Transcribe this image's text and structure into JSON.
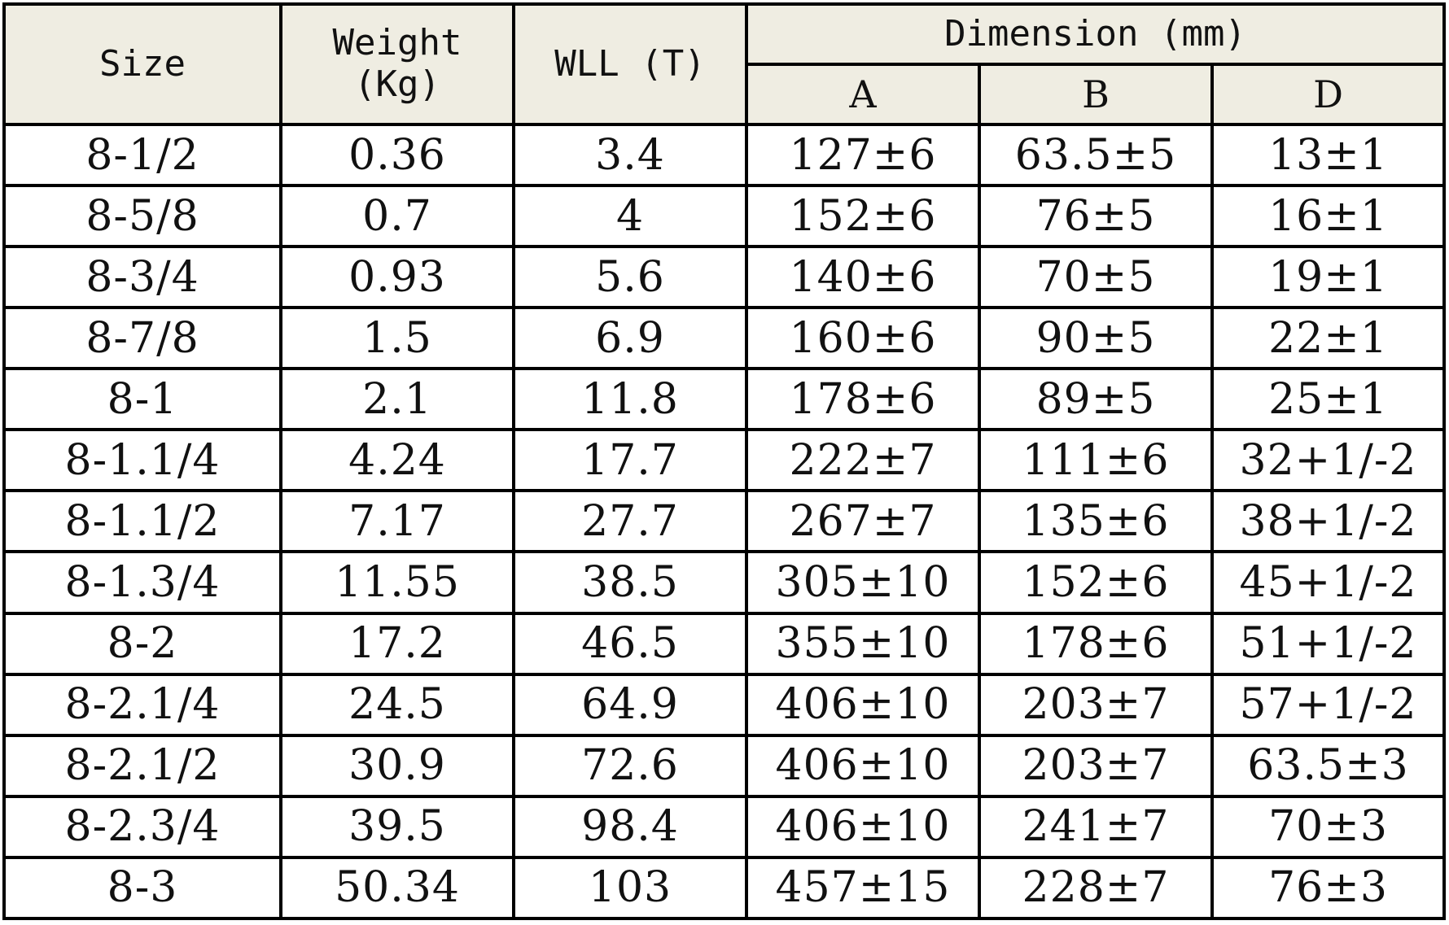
{
  "header": {
    "size": "Size",
    "weight_line1": "Weight",
    "weight_line2": "(Kg)",
    "wll": "WLL (T)",
    "dimension": "Dimension (mm)",
    "a": "A",
    "b": "B",
    "d": "D"
  },
  "rows": [
    {
      "size": "8-1/2",
      "weight": "0.36",
      "wll": "3.4",
      "a": "127±6",
      "b": "63.5±5",
      "d": "13±1"
    },
    {
      "size": "8-5/8",
      "weight": "0.7",
      "wll": "4",
      "a": "152±6",
      "b": "76±5",
      "d": "16±1"
    },
    {
      "size": "8-3/4",
      "weight": "0.93",
      "wll": "5.6",
      "a": "140±6",
      "b": "70±5",
      "d": "19±1"
    },
    {
      "size": "8-7/8",
      "weight": "1.5",
      "wll": "6.9",
      "a": "160±6",
      "b": "90±5",
      "d": "22±1"
    },
    {
      "size": "8-1",
      "weight": "2.1",
      "wll": "11.8",
      "a": "178±6",
      "b": "89±5",
      "d": "25±1"
    },
    {
      "size": "8-1.1/4",
      "weight": "4.24",
      "wll": "17.7",
      "a": "222±7",
      "b": "111±6",
      "d": "32+1/-2"
    },
    {
      "size": "8-1.1/2",
      "weight": "7.17",
      "wll": "27.7",
      "a": "267±7",
      "b": "135±6",
      "d": "38+1/-2"
    },
    {
      "size": "8-1.3/4",
      "weight": "11.55",
      "wll": "38.5",
      "a": "305±10",
      "b": "152±6",
      "d": "45+1/-2"
    },
    {
      "size": "8-2",
      "weight": "17.2",
      "wll": "46.5",
      "a": "355±10",
      "b": "178±6",
      "d": "51+1/-2"
    },
    {
      "size": "8-2.1/4",
      "weight": "24.5",
      "wll": "64.9",
      "a": "406±10",
      "b": "203±7",
      "d": "57+1/-2"
    },
    {
      "size": "8-2.1/2",
      "weight": "30.9",
      "wll": "72.6",
      "a": "406±10",
      "b": "203±7",
      "d": "63.5±3"
    },
    {
      "size": "8-2.3/4",
      "weight": "39.5",
      "wll": "98.4",
      "a": "406±10",
      "b": "241±7",
      "d": "70±3"
    },
    {
      "size": "8-3",
      "weight": "50.34",
      "wll": "103",
      "a": "457±15",
      "b": "228±7",
      "d": "76±3"
    }
  ]
}
